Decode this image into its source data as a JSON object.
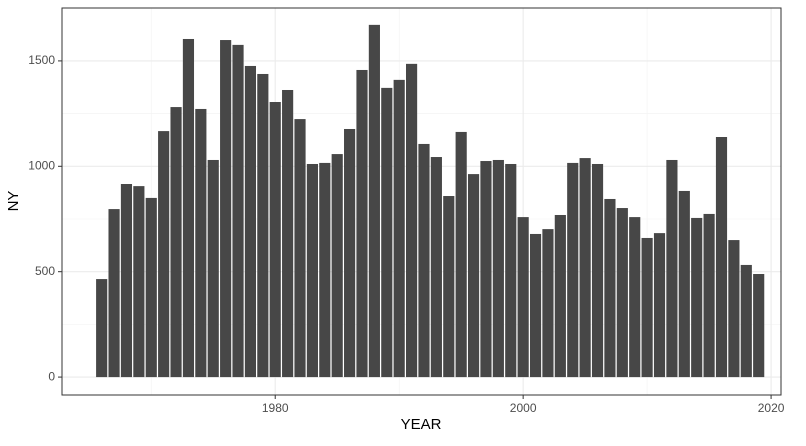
{
  "chart_data": {
    "type": "bar",
    "x_label": "YEAR",
    "y_label": "NY",
    "x": [
      1966,
      1967,
      1968,
      1969,
      1970,
      1971,
      1972,
      1973,
      1974,
      1975,
      1976,
      1977,
      1978,
      1979,
      1980,
      1981,
      1982,
      1983,
      1984,
      1985,
      1986,
      1987,
      1988,
      1989,
      1990,
      1991,
      1992,
      1993,
      1994,
      1995,
      1996,
      1997,
      1998,
      1999,
      2000,
      2001,
      2002,
      2003,
      2004,
      2005,
      2006,
      2007,
      2008,
      2009,
      2010,
      2011,
      2012,
      2013,
      2014,
      2015,
      2016,
      2017,
      2018,
      2019
    ],
    "values": [
      465,
      797,
      916,
      906,
      850,
      1167,
      1281,
      1604,
      1272,
      1030,
      1599,
      1576,
      1476,
      1438,
      1305,
      1362,
      1224,
      1011,
      1016,
      1058,
      1177,
      1457,
      1671,
      1372,
      1410,
      1486,
      1106,
      1044,
      859,
      1163,
      963,
      1025,
      1030,
      1011,
      759,
      679,
      702,
      769,
      1016,
      1039,
      1011,
      845,
      802,
      759,
      660,
      683,
      1030,
      883,
      755,
      774,
      1139,
      650,
      532,
      489
    ],
    "color": "#474747",
    "xlim": [
      1962.8,
      2020.8
    ],
    "ylim": [
      -85,
      1751
    ],
    "xticks": [
      1980,
      2000,
      2020
    ],
    "yticks": [
      0,
      500,
      1000,
      1500
    ],
    "minor_xticks": [
      1970,
      1990,
      2010
    ],
    "minor_yticks": [
      250,
      750,
      1250
    ],
    "grid": true
  }
}
